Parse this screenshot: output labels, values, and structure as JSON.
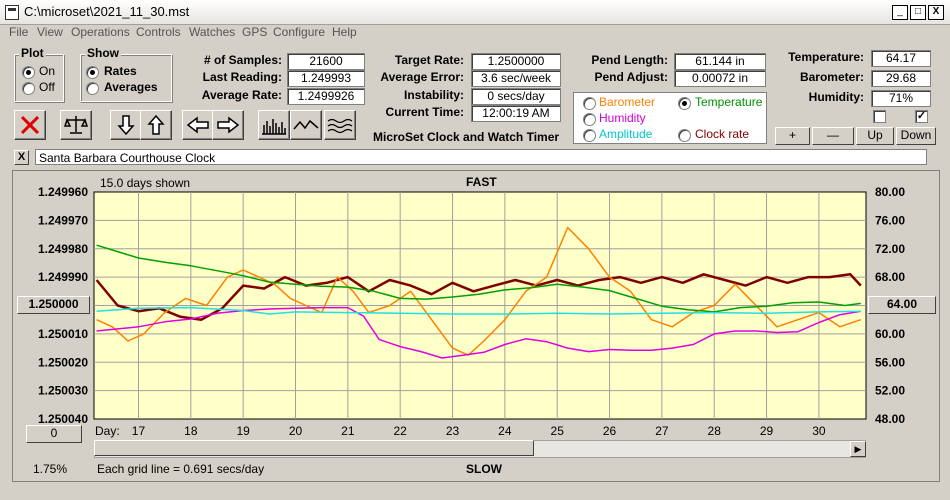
{
  "window": {
    "title": "C:\\microset\\2021_11_30.mst",
    "min": "_",
    "max": "□",
    "close": "X"
  },
  "menu": [
    "File",
    "View",
    "Operations",
    "Controls",
    "Watches",
    "GPS",
    "Configure",
    "Help"
  ],
  "plot_group": {
    "title": "Plot",
    "options": [
      "On",
      "Off"
    ],
    "selected": "On"
  },
  "show_group": {
    "title": "Show",
    "options": [
      "Rates",
      "Averages"
    ],
    "selected": "Rates"
  },
  "stats": {
    "samples_label": "# of Samples:",
    "samples": "21600",
    "last_reading_label": "Last Reading:",
    "last_reading": "1.249993",
    "average_rate_label": "Average Rate:",
    "average_rate": "1.2499926",
    "target_rate_label": "Target Rate:",
    "target_rate": "1.2500000",
    "average_error_label": "Average Error:",
    "average_error": "3.6 sec/week",
    "instability_label": "Instability:",
    "instability": "0 secs/day",
    "current_time_label": "Current Time:",
    "current_time": "12:00:19 AM",
    "app_name": "MicroSet Clock and Watch Timer"
  },
  "pendulum": {
    "length_label": "Pend Length:",
    "length": "61.144 in",
    "adjust_label": "Pend Adjust:",
    "adjust": "0.00072 in"
  },
  "sensor_select": [
    {
      "label": "Barometer",
      "color": "#ff8000",
      "selected": false
    },
    {
      "label": "Temperature",
      "color": "#009000",
      "selected": true
    },
    {
      "label": "Humidity",
      "color": "#d000d0",
      "selected": false
    },
    {
      "label": "Amplitude",
      "color": "#00c8c8",
      "selected": false
    },
    {
      "label": "Clock rate",
      "color": "#800000",
      "selected": false
    }
  ],
  "environment": {
    "temperature_label": "Temperature:",
    "temperature": "64.17",
    "barometer_label": "Barometer:",
    "barometer": "29.68",
    "humidity_label": "Humidity:",
    "humidity": "71%",
    "check1": false,
    "check2": true
  },
  "adjust_buttons": [
    "+",
    "—",
    "Up",
    "Down"
  ],
  "toolbar_icons": [
    "reset-icon",
    "balance-icon",
    "arrow-down-icon",
    "arrow-up-icon",
    "arrow-left-icon",
    "arrow-right-icon",
    "histogram-icon",
    "wave-icon",
    "lines-icon"
  ],
  "clock_name": {
    "close": "X",
    "name": "Santa Barbara Courthouse Clock"
  },
  "chart": {
    "days_shown": "15.0 days shown",
    "fast_label": "FAST",
    "slow_label": "SLOW",
    "grid_note": "Each grid line = 0.691 secs/day",
    "percent": "1.75%",
    "center_button": "1.250000",
    "right_button": "64.00",
    "zero_button": "0",
    "day_label": "Day:"
  },
  "chart_data": {
    "type": "line",
    "x_label": "Day:",
    "x_ticks": [
      "17",
      "18",
      "19",
      "20",
      "21",
      "22",
      "23",
      "24",
      "25",
      "26",
      "27",
      "28",
      "29",
      "30"
    ],
    "x_range": [
      16.15,
      30.9
    ],
    "y_left_ticks": [
      "1.249960",
      "1.249970",
      "1.249980",
      "1.249990",
      "1.250000",
      "1.250010",
      "1.250020",
      "1.250030",
      "1.250040"
    ],
    "y_left_range": [
      1.24996,
      1.25004
    ],
    "y_right_ticks": [
      "80.00",
      "76.00",
      "72.00",
      "68.00",
      "64.00",
      "60.00",
      "56.00",
      "52.00",
      "48.00"
    ],
    "y_right_range": [
      80,
      48
    ],
    "grid": true,
    "series": [
      {
        "name": "Clock rate",
        "color": "#800000",
        "axis": "left",
        "x": [
          16.2,
          16.6,
          17.0,
          17.4,
          17.8,
          18.2,
          18.6,
          19.0,
          19.4,
          19.8,
          20.2,
          20.6,
          21.0,
          21.4,
          21.8,
          22.2,
          22.6,
          23.0,
          23.4,
          23.8,
          24.2,
          24.6,
          25.0,
          25.4,
          25.8,
          26.2,
          26.6,
          27.0,
          27.4,
          27.8,
          28.2,
          28.6,
          29.0,
          29.4,
          29.8,
          30.2,
          30.6,
          30.8
        ],
        "y": [
          1.249991,
          1.25,
          1.250002,
          1.250001,
          1.250004,
          1.250005,
          1.250001,
          1.249993,
          1.249994,
          1.24999,
          1.249993,
          1.249992,
          1.24999,
          1.249995,
          1.249991,
          1.249993,
          1.249996,
          1.249992,
          1.249995,
          1.249993,
          1.249991,
          1.249993,
          1.249991,
          1.249993,
          1.249991,
          1.24999,
          1.249992,
          1.24999,
          1.249992,
          1.249989,
          1.249991,
          1.249993,
          1.24999,
          1.249992,
          1.24999,
          1.24999,
          1.249989,
          1.249993
        ]
      },
      {
        "name": "Barometer",
        "color": "#ff8000",
        "axis": "right",
        "x": [
          16.2,
          16.5,
          16.8,
          17.1,
          17.5,
          17.9,
          18.3,
          18.7,
          19.0,
          19.3,
          19.6,
          19.9,
          20.2,
          20.5,
          20.8,
          21.1,
          21.4,
          21.8,
          22.2,
          22.6,
          23.0,
          23.3,
          23.6,
          24.0,
          24.4,
          24.8,
          25.2,
          25.6,
          26.0,
          26.4,
          26.8,
          27.2,
          27.6,
          28.0,
          28.4,
          28.8,
          29.2,
          29.6,
          30.0,
          30.4,
          30.8
        ],
        "y": [
          62,
          61,
          59,
          60,
          63,
          65,
          64,
          68,
          69,
          68,
          67,
          65,
          64,
          63,
          68,
          66,
          63,
          64,
          66,
          62,
          58,
          57,
          59,
          62,
          66,
          68,
          75,
          72,
          68,
          66,
          62,
          61,
          63,
          64,
          67,
          64,
          61,
          62,
          63,
          61,
          62
        ]
      },
      {
        "name": "Temperature",
        "color": "#00a000",
        "axis": "right",
        "x": [
          16.2,
          16.6,
          17.0,
          17.5,
          18.0,
          18.5,
          19.0,
          19.5,
          20.0,
          20.5,
          21.0,
          21.5,
          22.0,
          22.5,
          23.0,
          23.5,
          24.0,
          24.5,
          25.0,
          25.5,
          26.0,
          26.5,
          27.0,
          27.5,
          28.0,
          28.5,
          29.0,
          29.5,
          30.0,
          30.5,
          30.8
        ],
        "y": [
          72.5,
          71.6,
          70.7,
          70.1,
          69.6,
          68.9,
          68.2,
          67.3,
          67.0,
          66.7,
          66.6,
          66.0,
          65.0,
          64.9,
          65.2,
          65.6,
          66.2,
          66.5,
          67.0,
          66.6,
          66.1,
          65.0,
          63.9,
          63.4,
          63.1,
          63.7,
          63.9,
          64.4,
          64.5,
          64.0,
          64.3
        ]
      },
      {
        "name": "Humidity",
        "color": "#e000e0",
        "axis": "right",
        "x": [
          16.2,
          16.6,
          17.0,
          17.5,
          18.0,
          18.5,
          19.0,
          19.5,
          20.0,
          20.5,
          21.0,
          21.3,
          21.6,
          22.0,
          22.4,
          22.8,
          23.2,
          23.6,
          24.0,
          24.4,
          24.8,
          25.2,
          25.6,
          26.0,
          26.4,
          26.8,
          27.2,
          27.6,
          28.0,
          28.4,
          28.8,
          29.2,
          29.6,
          30.0,
          30.4,
          30.8
        ],
        "y": [
          60.4,
          60.7,
          61.0,
          61.7,
          62.1,
          62.9,
          63.3,
          63.5,
          63.6,
          63.7,
          63.7,
          62.5,
          59.2,
          58.2,
          57.5,
          56.6,
          57.0,
          57.4,
          58.5,
          59.3,
          58.9,
          58.0,
          57.5,
          57.8,
          57.7,
          57.7,
          58.0,
          58.5,
          60.0,
          60.4,
          60.4,
          60.2,
          60.3,
          61.6,
          62.7,
          63.2
        ]
      },
      {
        "name": "Amplitude",
        "color": "#20e0e0",
        "axis": "right",
        "x": [
          16.2,
          17.0,
          18.0,
          19.0,
          19.5,
          20.0,
          21.0,
          22.0,
          23.0,
          24.0,
          25.0,
          26.0,
          27.0,
          28.0,
          29.0,
          30.0,
          30.8
        ],
        "y": [
          63.2,
          63.6,
          63.7,
          63.3,
          62.8,
          63.1,
          63.0,
          62.9,
          62.8,
          62.8,
          62.9,
          62.8,
          62.9,
          63.0,
          62.9,
          63.1,
          63.2
        ]
      }
    ]
  }
}
